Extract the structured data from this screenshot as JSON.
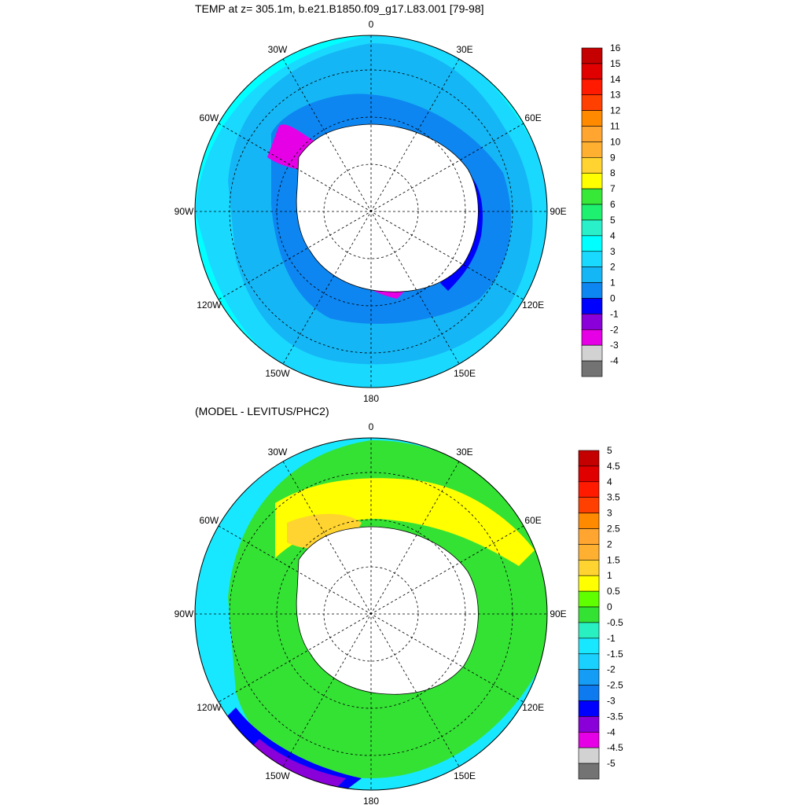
{
  "panels": [
    {
      "title": "TEMP at z= 305.1m, b.e21.B1850.f09_g17.L83.001 [79-98]",
      "lon_labels": [
        "0",
        "30E",
        "60E",
        "90E",
        "120E",
        "150E",
        "180",
        "150W",
        "120W",
        "90W",
        "60W",
        "30W"
      ],
      "colorbar": {
        "labels": [
          "16",
          "15",
          "14",
          "13",
          "12",
          "11",
          "10",
          "9",
          "8",
          "7",
          "6",
          "5",
          "4",
          "3",
          "2",
          "1",
          "0",
          "-1",
          "-2",
          "-3",
          "-4"
        ],
        "colors": [
          "#c40000",
          "#e00000",
          "#ff1a00",
          "#ff4000",
          "#ff8a00",
          "#ffa530",
          "#ffb030",
          "#ffd330",
          "#ffff00",
          "#38e838",
          "#1ef070",
          "#29f0c8",
          "#00ffff",
          "#1ad9ff",
          "#15b6f5",
          "#0d86f2",
          "#0000ff",
          "#8a00d8",
          "#e600e6",
          "#d2d2d2",
          "#737373"
        ],
        "fill_index_ocean": 14,
        "fill_index_mid": 15,
        "fill_index_outer": 12
      }
    },
    {
      "title": "(MODEL - LEVITUS/PHC2)",
      "lon_labels": [
        "0",
        "30E",
        "60E",
        "90E",
        "120E",
        "150E",
        "180",
        "150W",
        "120W",
        "90W",
        "60W",
        "30W"
      ],
      "colorbar": {
        "labels": [
          "5",
          "4.5",
          "4",
          "3.5",
          "3",
          "2.5",
          "2",
          "1.5",
          "1",
          "0.5",
          "0",
          "-0.5",
          "-1",
          "-1.5",
          "-2",
          "-2.5",
          "-3",
          "-3.5",
          "-4",
          "-4.5",
          "-5"
        ],
        "colors": [
          "#c40000",
          "#e00000",
          "#ff1a00",
          "#ff4000",
          "#ff8a00",
          "#ffa530",
          "#ffb030",
          "#ffd330",
          "#ffff00",
          "#60ff00",
          "#34e234",
          "#28f0c0",
          "#18e8ff",
          "#1ad0ff",
          "#159cf5",
          "#0d7af0",
          "#0000ff",
          "#8a00d8",
          "#e600e6",
          "#d2d2d2",
          "#737373"
        ]
      }
    }
  ]
}
